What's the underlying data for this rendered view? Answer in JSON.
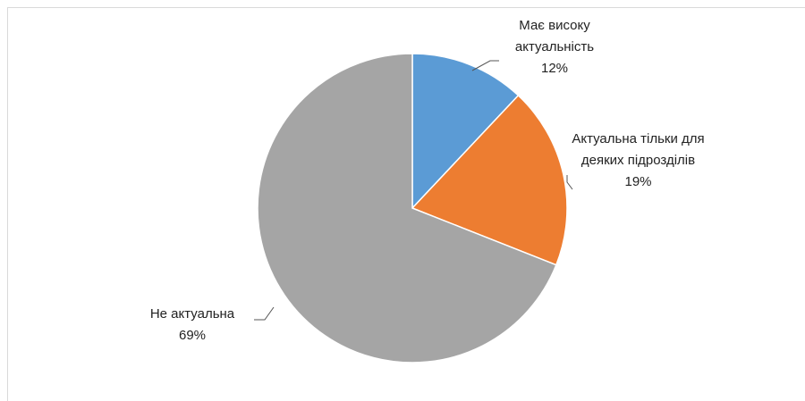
{
  "chart_data": {
    "type": "pie",
    "categories": [
      "Має високу актуальність",
      "Актуальна тільки для деяких підрозділів",
      "Не актуальна"
    ],
    "values": [
      12,
      19,
      69
    ],
    "value_labels": [
      "12%",
      "19%",
      "69%"
    ],
    "colors": [
      "#5b9bd5",
      "#ed7d31",
      "#a5a5a5"
    ]
  }
}
